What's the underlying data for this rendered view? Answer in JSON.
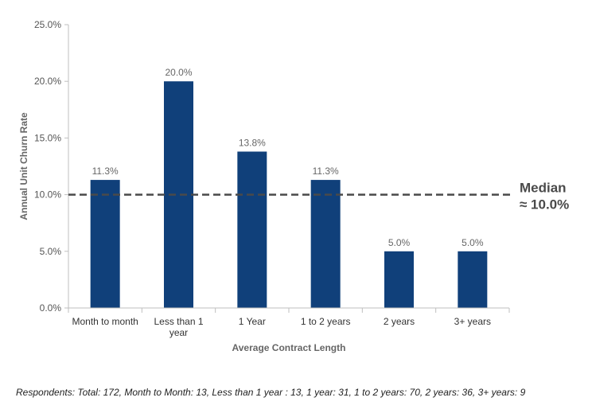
{
  "chart_data": {
    "type": "bar",
    "categories": [
      [
        "Month to month"
      ],
      [
        "Less than 1",
        "year"
      ],
      [
        "1 Year"
      ],
      [
        "1 to 2 years"
      ],
      [
        "2 years"
      ],
      [
        "3+ years"
      ]
    ],
    "values": [
      11.3,
      20.0,
      13.8,
      11.3,
      5.0,
      5.0
    ],
    "data_labels": [
      "11.3%",
      "20.0%",
      "13.8%",
      "11.3%",
      "5.0%",
      "5.0%"
    ],
    "xlabel": "Average Contract Length",
    "ylabel": "Annual Unit Churn Rate",
    "ylim": [
      0,
      25
    ],
    "yticks": [
      "0.0%",
      "5.0%",
      "10.0%",
      "15.0%",
      "20.0%",
      "25.0%"
    ],
    "bar_color": "#10407a",
    "grid": false,
    "reference_line": {
      "value": 10.0,
      "label_line1": "Median",
      "label_line2": "≈ 10.0%",
      "color": "#4a4a4a",
      "style": "dashed"
    }
  },
  "footnote": "Respondents: Total: 172, Month to Month: 13, Less than 1 year : 13, 1 year: 31, 1 to 2 years: 70, 2 years: 36, 3+ years: 9"
}
